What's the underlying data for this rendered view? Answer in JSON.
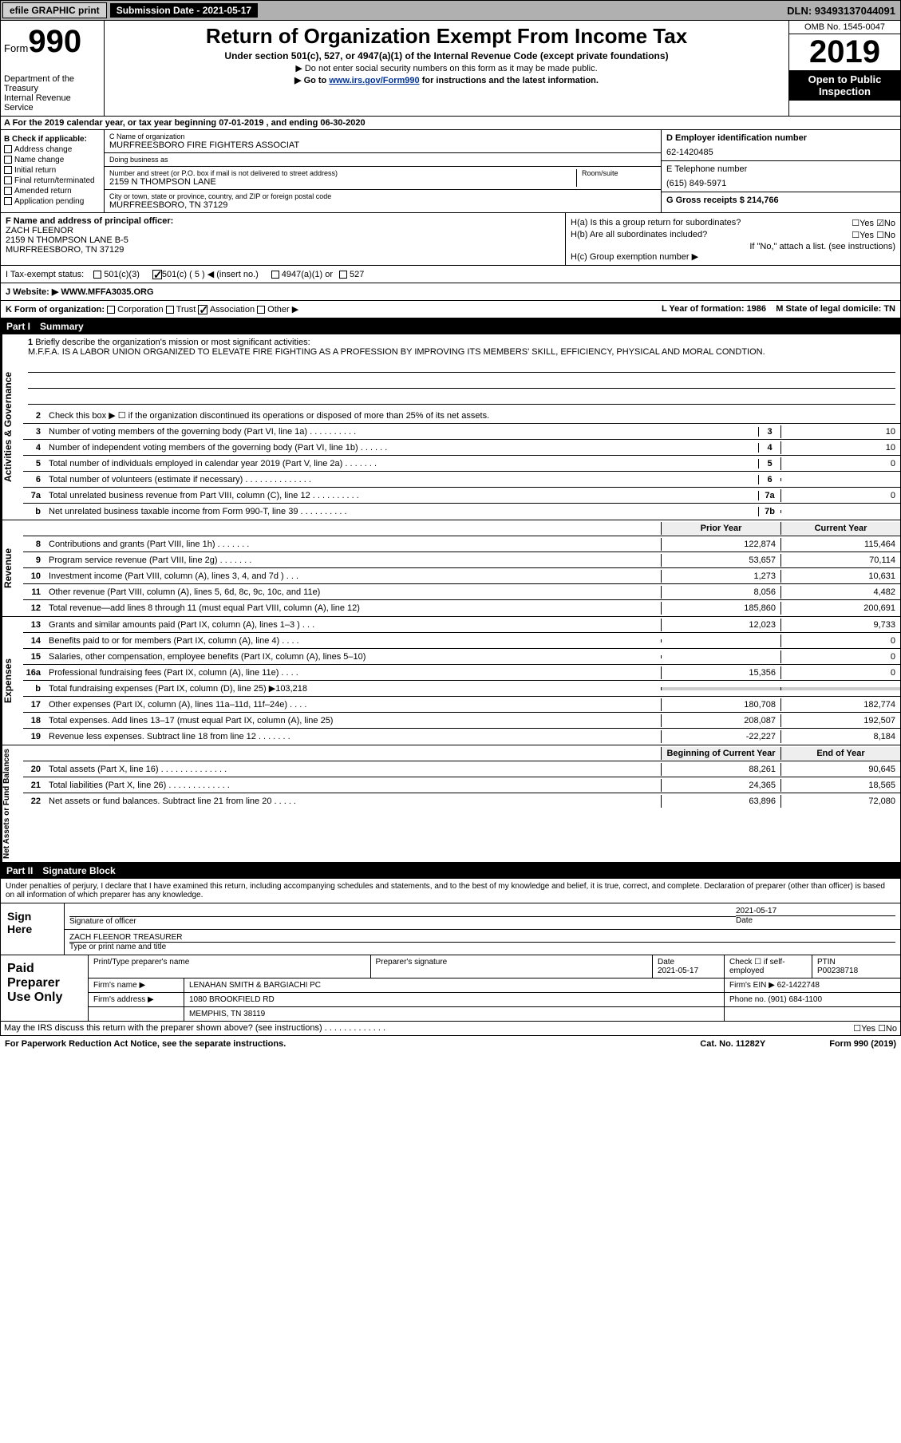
{
  "topbar": {
    "efile": "efile GRAPHIC print",
    "sub_label": "Submission Date - 2021-05-17",
    "dln": "DLN: 93493137044091"
  },
  "header": {
    "form_word": "Form",
    "form_num": "990",
    "dept": "Department of the Treasury\nInternal Revenue Service",
    "title": "Return of Organization Exempt From Income Tax",
    "sub1": "Under section 501(c), 527, or 4947(a)(1) of the Internal Revenue Code (except private foundations)",
    "sub2": "▶ Do not enter social security numbers on this form as it may be made public.",
    "sub3_pre": "▶ Go to ",
    "sub3_link": "www.irs.gov/Form990",
    "sub3_post": " for instructions and the latest information.",
    "omb": "OMB No. 1545-0047",
    "year": "2019",
    "open": "Open to Public Inspection"
  },
  "row_a": "A For the 2019 calendar year, or tax year beginning 07-01-2019   , and ending 06-30-2020",
  "col_b": {
    "title": "B Check if applicable:",
    "items": [
      "Address change",
      "Name change",
      "Initial return",
      "Final return/terminated",
      "Amended return",
      "Application pending"
    ]
  },
  "col_c": {
    "name_lbl": "C Name of organization",
    "name": "MURFREESBORO FIRE FIGHTERS ASSOCIAT",
    "dba_lbl": "Doing business as",
    "dba": "",
    "addr_lbl": "Number and street (or P.O. box if mail is not delivered to street address)",
    "room_lbl": "Room/suite",
    "addr": "2159 N THOMPSON LANE",
    "city_lbl": "City or town, state or province, country, and ZIP or foreign postal code",
    "city": "MURFREESBORO, TN  37129"
  },
  "col_de": {
    "d_lbl": "D Employer identification number",
    "d_val": "62-1420485",
    "e_lbl": "E Telephone number",
    "e_val": "(615) 849-5971",
    "g_lbl": "G Gross receipts $ ",
    "g_val": "214,766"
  },
  "row_f": {
    "lbl": "F  Name and address of principal officer:",
    "name": "ZACH FLEENOR",
    "addr1": "2159 N THOMPSON LANE B-5",
    "addr2": "MURFREESBORO, TN  37129"
  },
  "row_h": {
    "ha": "H(a)  Is this a group return for subordinates?",
    "ha_ans": "☐Yes ☑No",
    "hb": "H(b)  Are all subordinates included?",
    "hb_ans": "☐Yes ☐No",
    "hb_note": "If \"No,\" attach a list. (see instructions)",
    "hc": "H(c)  Group exemption number ▶"
  },
  "row_i": {
    "lbl": "I   Tax-exempt status:",
    "opts": [
      "501(c)(3)",
      "501(c) ( 5 ) ◀ (insert no.)",
      "4947(a)(1) or",
      "527"
    ],
    "checked": 1
  },
  "row_j": {
    "lbl": "J   Website: ▶",
    "val": "WWW.MFFA3035.ORG"
  },
  "row_k": {
    "k": "K Form of organization:",
    "opts": [
      "Corporation",
      "Trust",
      "Association",
      "Other ▶"
    ],
    "checked": 2,
    "l": "L Year of formation: 1986",
    "m": "M State of legal domicile: TN"
  },
  "part1": {
    "num": "Part I",
    "title": "Summary"
  },
  "mission": {
    "n": "1",
    "lbl": "Briefly describe the organization's mission or most significant activities:",
    "text": "M.F.F.A. IS A LABOR UNION ORGANIZED TO ELEVATE FIRE FIGHTING AS A PROFESSION BY IMPROVING ITS MEMBERS' SKILL, EFFICIENCY, PHYSICAL AND MORAL CONDTION."
  },
  "gov_lines": [
    {
      "n": "2",
      "d": "Check this box ▶ ☐  if the organization discontinued its operations or disposed of more than 25% of its net assets."
    },
    {
      "n": "3",
      "d": "Number of voting members of the governing body (Part VI, line 1a)  .    .    .    .    .    .    .    .    .    .",
      "nb": "3",
      "v": "10"
    },
    {
      "n": "4",
      "d": "Number of independent voting members of the governing body (Part VI, line 1b)  .    .    .    .    .    .",
      "nb": "4",
      "v": "10"
    },
    {
      "n": "5",
      "d": "Total number of individuals employed in calendar year 2019 (Part V, line 2a)  .    .    .    .    .    .    .",
      "nb": "5",
      "v": "0"
    },
    {
      "n": "6",
      "d": "Total number of volunteers (estimate if necessary)    .    .    .    .    .    .    .    .    .    .    .    .    .    .",
      "nb": "6",
      "v": ""
    },
    {
      "n": "7a",
      "d": "Total unrelated business revenue from Part VIII, column (C), line 12  .    .    .    .    .    .    .    .    .    .",
      "nb": "7a",
      "v": "0"
    },
    {
      "n": "b",
      "d": "Net unrelated business taxable income from Form 990-T, line 39    .    .    .    .    .    .    .    .    .    .",
      "nb": "7b",
      "v": ""
    }
  ],
  "rev_hdr": {
    "py": "Prior Year",
    "cy": "Current Year"
  },
  "rev_lines": [
    {
      "n": "8",
      "d": "Contributions and grants (Part VIII, line 1h)    .    .    .    .    .    .    .",
      "py": "122,874",
      "cy": "115,464"
    },
    {
      "n": "9",
      "d": "Program service revenue (Part VIII, line 2g)    .    .    .    .    .    .    .",
      "py": "53,657",
      "cy": "70,114"
    },
    {
      "n": "10",
      "d": "Investment income (Part VIII, column (A), lines 3, 4, and 7d )    .    .    .",
      "py": "1,273",
      "cy": "10,631"
    },
    {
      "n": "11",
      "d": "Other revenue (Part VIII, column (A), lines 5, 6d, 8c, 9c, 10c, and 11e)",
      "py": "8,056",
      "cy": "4,482"
    },
    {
      "n": "12",
      "d": "Total revenue—add lines 8 through 11 (must equal Part VIII, column (A), line 12)",
      "py": "185,860",
      "cy": "200,691"
    }
  ],
  "exp_lines": [
    {
      "n": "13",
      "d": "Grants and similar amounts paid (Part IX, column (A), lines 1–3 )  .    .    .",
      "py": "12,023",
      "cy": "9,733"
    },
    {
      "n": "14",
      "d": "Benefits paid to or for members (Part IX, column (A), line 4)  .    .    .    .",
      "py": "",
      "cy": "0"
    },
    {
      "n": "15",
      "d": "Salaries, other compensation, employee benefits (Part IX, column (A), lines 5–10)",
      "py": "",
      "cy": "0"
    },
    {
      "n": "16a",
      "d": "Professional fundraising fees (Part IX, column (A), line 11e)  .    .    .    .",
      "py": "15,356",
      "cy": "0"
    },
    {
      "n": "b",
      "d": "Total fundraising expenses (Part IX, column (D), line 25) ▶103,218",
      "shade": true
    },
    {
      "n": "17",
      "d": "Other expenses (Part IX, column (A), lines 11a–11d, 11f–24e)  .    .    .    .",
      "py": "180,708",
      "cy": "182,774"
    },
    {
      "n": "18",
      "d": "Total expenses. Add lines 13–17 (must equal Part IX, column (A), line 25)",
      "py": "208,087",
      "cy": "192,507"
    },
    {
      "n": "19",
      "d": "Revenue less expenses. Subtract line 18 from line 12  .    .    .    .    .    .    .",
      "py": "-22,227",
      "cy": "8,184"
    }
  ],
  "na_hdr": {
    "py": "Beginning of Current Year",
    "cy": "End of Year"
  },
  "na_lines": [
    {
      "n": "20",
      "d": "Total assets (Part X, line 16)  .    .    .    .    .    .    .    .    .    .    .    .    .    .",
      "py": "88,261",
      "cy": "90,645"
    },
    {
      "n": "21",
      "d": "Total liabilities (Part X, line 26)  .    .    .    .    .    .    .    .    .    .    .    .    .",
      "py": "24,365",
      "cy": "18,565"
    },
    {
      "n": "22",
      "d": "Net assets or fund balances. Subtract line 21 from line 20  .    .    .    .    .",
      "py": "63,896",
      "cy": "72,080"
    }
  ],
  "part2": {
    "num": "Part II",
    "title": "Signature Block"
  },
  "penalties": "Under penalties of perjury, I declare that I have examined this return, including accompanying schedules and statements, and to the best of my knowledge and belief, it is true, correct, and complete. Declaration of preparer (other than officer) is based on all information of which preparer has any knowledge.",
  "sign": {
    "here": "Sign Here",
    "sig_lbl": "Signature of officer",
    "date_lbl": "Date",
    "date": "2021-05-17",
    "name": "ZACH FLEENOR  TREASURER",
    "name_lbl": "Type or print name and title"
  },
  "prep": {
    "title": "Paid Preparer Use Only",
    "h1": "Print/Type preparer's name",
    "h2": "Preparer's signature",
    "h3": "Date",
    "h3v": "2021-05-17",
    "h4": "Check ☐ if self-employed",
    "h5": "PTIN",
    "h5v": "P00238718",
    "firm_lbl": "Firm's name    ▶",
    "firm": "LENAHAN SMITH & BARGIACHI PC",
    "ein_lbl": "Firm's EIN ▶",
    "ein": "62-1422748",
    "addr_lbl": "Firm's address ▶",
    "addr1": "1080 BROOKFIELD RD",
    "addr2": "MEMPHIS, TN  38119",
    "phone_lbl": "Phone no.",
    "phone": "(901) 684-1100"
  },
  "discuss": "May the IRS discuss this return with the preparer shown above? (see instructions)    .    .    .    .    .    .    .    .    .    .    .    .    .",
  "discuss_ans": "☐Yes   ☐No",
  "footer": {
    "left": "For Paperwork Reduction Act Notice, see the separate instructions.",
    "mid": "Cat. No. 11282Y",
    "right": "Form 990 (2019)"
  }
}
